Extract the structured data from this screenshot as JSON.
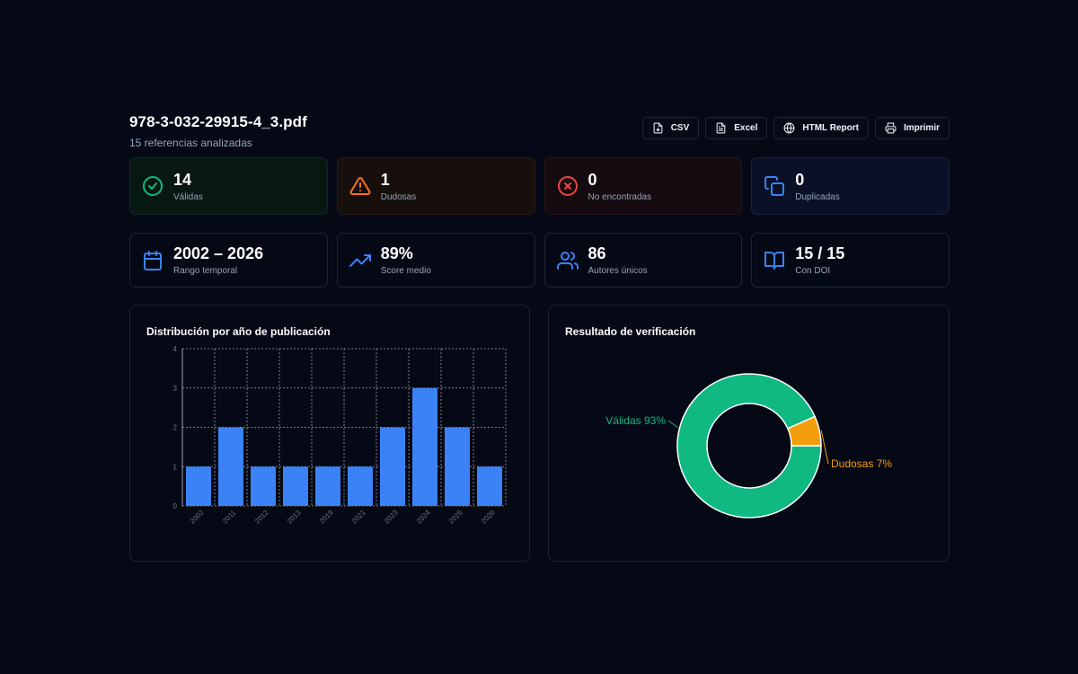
{
  "file": {
    "name": "978-3-032-29915-4_3.pdf",
    "subtitle": "15 referencias analizadas"
  },
  "actions": [
    {
      "label": "CSV",
      "icon": "file-csv-icon"
    },
    {
      "label": "Excel",
      "icon": "file-excel-icon"
    },
    {
      "label": "HTML Report",
      "icon": "globe-icon"
    },
    {
      "label": "Imprimir",
      "icon": "printer-icon"
    }
  ],
  "stats_top": [
    {
      "value": "14",
      "label": "Válidas",
      "icon": "check-circle-icon",
      "color": "#10b981"
    },
    {
      "value": "1",
      "label": "Dudosas",
      "icon": "warning-triangle-icon",
      "color": "#f97316"
    },
    {
      "value": "0",
      "label": "No encontradas",
      "icon": "x-circle-icon",
      "color": "#ef4444"
    },
    {
      "value": "0",
      "label": "Duplicadas",
      "icon": "copy-icon",
      "color": "#3b82f6"
    }
  ],
  "stats_bottom": [
    {
      "value": "2002 – 2026",
      "label": "Rango temporal",
      "icon": "calendar-icon",
      "color": "#3b82f6"
    },
    {
      "value": "89%",
      "label": "Score medio",
      "icon": "trending-up-icon",
      "color": "#3b82f6"
    },
    {
      "value": "86",
      "label": "Autores únicos",
      "icon": "users-icon",
      "color": "#3b82f6"
    },
    {
      "value": "15 / 15",
      "label": "Con DOI",
      "icon": "book-open-icon",
      "color": "#3b82f6"
    }
  ],
  "chart_data": [
    {
      "type": "bar",
      "title": "Distribución por año de publicación",
      "categories": [
        "2002",
        "2011",
        "2012",
        "2013",
        "2019",
        "2021",
        "2023",
        "2024",
        "2025",
        "2026"
      ],
      "values": [
        1,
        2,
        1,
        1,
        1,
        1,
        2,
        3,
        2,
        1
      ],
      "ylim": [
        0,
        4
      ],
      "yticks": [
        "0",
        "1",
        "2",
        "3",
        "4"
      ],
      "grid": true,
      "color": "#3b82f6"
    },
    {
      "type": "pie",
      "title": "Resultado de verificación",
      "donut": true,
      "labels": [
        "Válidas 93%",
        "Dudosas 7%"
      ],
      "values": [
        14,
        1
      ],
      "colors": [
        "#10b981",
        "#f59e0b"
      ]
    }
  ]
}
